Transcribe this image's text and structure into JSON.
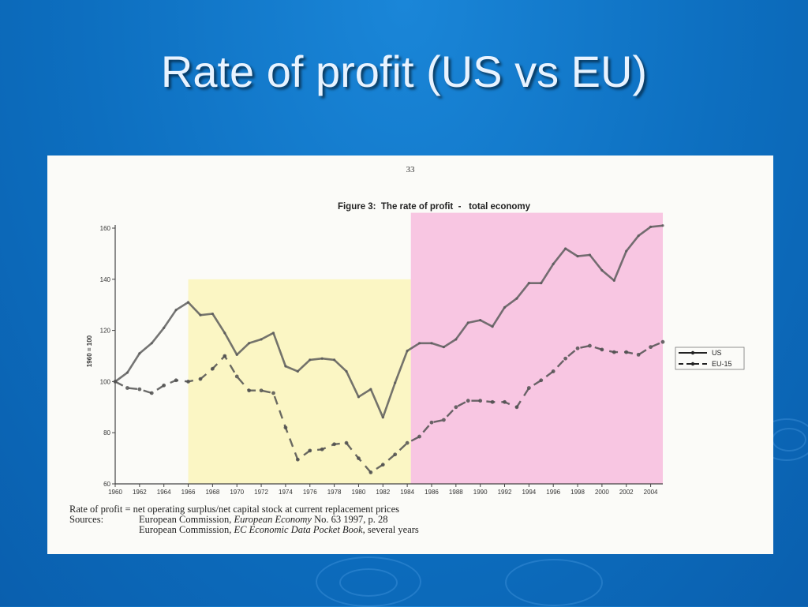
{
  "slide": {
    "title": "Rate of profit (US vs EU)"
  },
  "page": {
    "number": "33"
  },
  "chart_data": {
    "type": "line",
    "title": "Figure 3:  The rate of profit  -   total economy",
    "ylabel": "1960 = 100",
    "xlabel": "",
    "ylim": [
      60,
      160
    ],
    "yticks": [
      60,
      80,
      100,
      120,
      140,
      160
    ],
    "xlim": [
      1960,
      2005
    ],
    "xticks": [
      1960,
      1962,
      1964,
      1966,
      1968,
      1970,
      1972,
      1974,
      1976,
      1978,
      1980,
      1982,
      1984,
      1986,
      1988,
      1990,
      1992,
      1994,
      1996,
      1998,
      2000,
      2002,
      2004
    ],
    "legend_position": "right",
    "highlights": [
      {
        "from": 1966,
        "to": 1984.3,
        "ymax": 140,
        "color": "#fbf6c4"
      },
      {
        "from": 1984.3,
        "to": 2005,
        "ymax": 166,
        "color": "#f8c6e2"
      }
    ],
    "series": [
      {
        "name": "US",
        "style": "solid",
        "x": [
          1960,
          1961,
          1962,
          1963,
          1964,
          1965,
          1966,
          1967,
          1968,
          1969,
          1970,
          1971,
          1972,
          1973,
          1974,
          1975,
          1976,
          1977,
          1978,
          1979,
          1980,
          1981,
          1982,
          1983,
          1984,
          1985,
          1986,
          1987,
          1988,
          1989,
          1990,
          1991,
          1992,
          1993,
          1994,
          1995,
          1996,
          1997,
          1998,
          1999,
          2000,
          2001,
          2002,
          2003,
          2004,
          2005
        ],
        "values": [
          100,
          103.5,
          111,
          115,
          121,
          128,
          131,
          126,
          126.5,
          119,
          110.5,
          115,
          116.5,
          119,
          106,
          104,
          108.5,
          109,
          108.5,
          104,
          94,
          97,
          86,
          99.5,
          112,
          115,
          115,
          113.5,
          116.5,
          123,
          124,
          121.5,
          129,
          132.5,
          138.5,
          138.5,
          146,
          152,
          149,
          149.5,
          143.5,
          139.5,
          151,
          157,
          160.5,
          161
        ]
      },
      {
        "name": "EU-15",
        "style": "dashed",
        "x": [
          1960,
          1961,
          1962,
          1963,
          1964,
          1965,
          1966,
          1967,
          1968,
          1969,
          1970,
          1971,
          1972,
          1973,
          1974,
          1975,
          1976,
          1977,
          1978,
          1979,
          1980,
          1981,
          1982,
          1983,
          1984,
          1985,
          1986,
          1987,
          1988,
          1989,
          1990,
          1991,
          1992,
          1993,
          1994,
          1995,
          1996,
          1997,
          1998,
          1999,
          2000,
          2001,
          2002,
          2003,
          2004,
          2005
        ],
        "values": [
          100,
          97.5,
          97,
          95.5,
          98.5,
          100.5,
          100,
          101,
          105,
          110,
          102,
          96.5,
          96.5,
          95.5,
          82,
          69.5,
          73,
          73.5,
          75.5,
          76,
          70,
          64.5,
          67.5,
          71.5,
          76,
          78.5,
          84,
          85,
          90,
          92.5,
          92.5,
          92,
          92,
          90,
          97.5,
          100.5,
          104,
          109,
          113,
          114,
          112.5,
          111.5,
          111.5,
          110.5,
          113.5,
          115.5
        ]
      }
    ]
  },
  "notes": {
    "definition": "Rate of profit = net operating surplus/net capital stock at current replacement prices",
    "sources_label": "Sources:",
    "source_1_pre": "European Commission, ",
    "source_1_italic": "European Economy",
    "source_1_post": " No. 63 1997, p. 28",
    "source_2_pre": "European Commission, ",
    "source_2_italic": "EC Economic Data Pocket Book",
    "source_2_post": ", several years"
  },
  "colors": {
    "us_line": "#5c5c5c",
    "eu_line": "#505050",
    "axis": "#444444"
  }
}
